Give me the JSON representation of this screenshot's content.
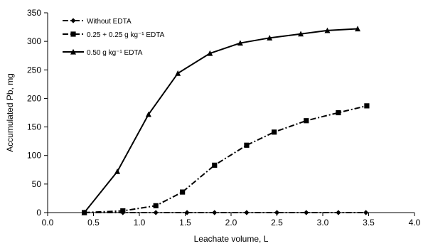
{
  "chart_data": {
    "type": "line",
    "title": "",
    "xlabel": "Leachate volume, L",
    "ylabel": "Accumulated Pb, mg",
    "xlim": [
      0,
      4.0
    ],
    "ylim": [
      0,
      350
    ],
    "xticks": [
      "0.0",
      "0.5",
      "1.0",
      "1.5",
      "2.0",
      "2.5",
      "3.0",
      "3.5",
      "4.0"
    ],
    "yticks": [
      "0",
      "50",
      "100",
      "150",
      "200",
      "250",
      "300",
      "350"
    ],
    "grid": false,
    "legend_position": "top-left",
    "series": [
      {
        "name": "Without EDTA",
        "marker": "diamond",
        "line": "dashdot",
        "color": "#000000",
        "points": [
          [
            0.4,
            0
          ],
          [
            0.82,
            0
          ],
          [
            1.18,
            0
          ],
          [
            1.52,
            0
          ],
          [
            1.82,
            0
          ],
          [
            2.17,
            0
          ],
          [
            2.5,
            0
          ],
          [
            2.82,
            0
          ],
          [
            3.17,
            0
          ],
          [
            3.47,
            0
          ]
        ]
      },
      {
        "name": "0.25 + 0.25 g kg⁻¹ EDTA",
        "marker": "square",
        "line": "dashdot",
        "color": "#000000",
        "points": [
          [
            0.4,
            0
          ],
          [
            0.82,
            3
          ],
          [
            1.18,
            12
          ],
          [
            1.47,
            36
          ],
          [
            1.82,
            83
          ],
          [
            2.17,
            118
          ],
          [
            2.47,
            141
          ],
          [
            2.82,
            161
          ],
          [
            3.17,
            175
          ],
          [
            3.48,
            187
          ]
        ]
      },
      {
        "name": "0.50 g kg⁻¹ EDTA",
        "marker": "triangle",
        "line": "solid",
        "color": "#000000",
        "points": [
          [
            0.4,
            0
          ],
          [
            0.76,
            72
          ],
          [
            1.1,
            172
          ],
          [
            1.42,
            244
          ],
          [
            1.77,
            279
          ],
          [
            2.1,
            297
          ],
          [
            2.42,
            306
          ],
          [
            2.76,
            313
          ],
          [
            3.05,
            319
          ],
          [
            3.38,
            322
          ]
        ]
      }
    ]
  }
}
